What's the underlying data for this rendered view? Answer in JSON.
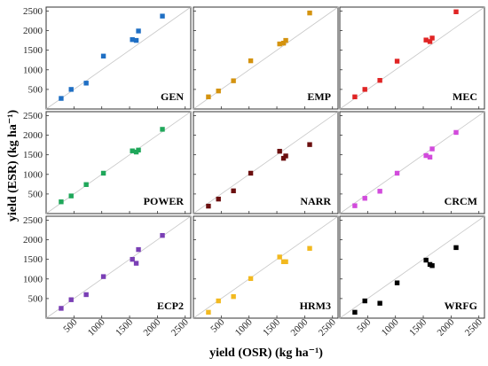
{
  "chart_data": {
    "type": "scatter",
    "layout": "3x3 small multiples, shared axes",
    "xlabel": "yield (OSR) (kg ha⁻¹)",
    "ylabel": "yield (ESR) (kg ha⁻¹)",
    "xlim": [
      0,
      2600
    ],
    "ylim": [
      0,
      2600
    ],
    "xticks": [
      500,
      1000,
      1500,
      2000,
      2500
    ],
    "yticks": [
      500,
      1000,
      1500,
      2000,
      2500
    ],
    "reference_line": "1:1",
    "grid": false,
    "x": [
      270,
      450,
      720,
      1030,
      1550,
      1620,
      1660,
      2090
    ],
    "panels": [
      {
        "name": "GEN",
        "color": "#1f6fc4",
        "y": [
          270,
          500,
          660,
          1350,
          1770,
          1750,
          1990,
          2370
        ]
      },
      {
        "name": "EMP",
        "color": "#d4930f",
        "y": [
          310,
          460,
          720,
          1230,
          1660,
          1680,
          1750,
          2450
        ]
      },
      {
        "name": "MEC",
        "color": "#e02424",
        "y": [
          310,
          500,
          730,
          1220,
          1760,
          1720,
          1810,
          2480
        ]
      },
      {
        "name": "POWER",
        "color": "#1fa75a",
        "y": [
          300,
          450,
          740,
          1030,
          1600,
          1570,
          1620,
          2150
        ]
      },
      {
        "name": "NARR",
        "color": "#6b0f0f",
        "y": [
          190,
          370,
          580,
          1030,
          1590,
          1410,
          1470,
          1760
        ]
      },
      {
        "name": "CRCM",
        "color": "#d24bdc",
        "y": [
          200,
          390,
          570,
          1030,
          1480,
          1440,
          1650,
          2070
        ]
      },
      {
        "name": "ECP2",
        "color": "#7a3fb5",
        "y": [
          250,
          470,
          600,
          1060,
          1500,
          1400,
          1750,
          2110
        ]
      },
      {
        "name": "HRM3",
        "color": "#f2b91f",
        "y": [
          150,
          440,
          550,
          1010,
          1560,
          1440,
          1440,
          1780
        ]
      },
      {
        "name": "WRFG",
        "color": "#000000",
        "y": [
          150,
          440,
          380,
          900,
          1480,
          1370,
          1340,
          1800
        ]
      }
    ]
  }
}
